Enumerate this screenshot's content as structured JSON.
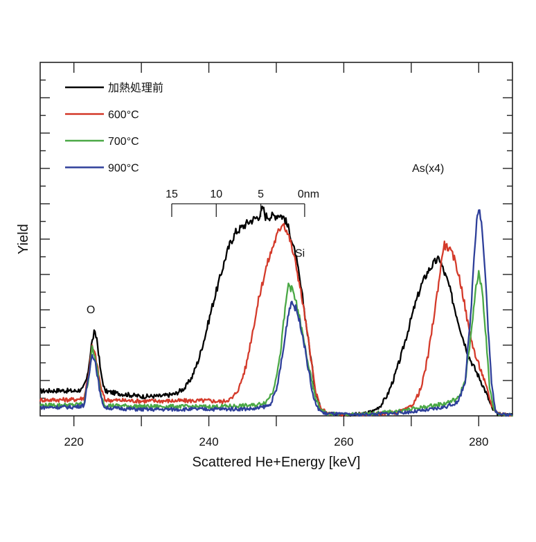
{
  "chart_data": {
    "type": "line",
    "title": "",
    "xlabel": "Scattered He+Energy [keV]",
    "ylabel": "Yield",
    "xlim": [
      215,
      285
    ],
    "ylim": [
      0,
      100
    ],
    "y_units_note": "arbitrary (no y tick labels shown)",
    "x_ticks": [
      220,
      240,
      260,
      280
    ],
    "x_tick_labels": [
      "220",
      "240",
      "260",
      "280"
    ],
    "x_minor_ticks": [
      230,
      250,
      270
    ],
    "y_tick_count": 20,
    "grid": false,
    "legend": {
      "placement": "top-left",
      "entries": [
        "加熱処理前",
        "600°C",
        "700°C",
        "900°C"
      ]
    },
    "annotations": [
      {
        "text": "O",
        "x": 222.5,
        "y": 29
      },
      {
        "text": "Si",
        "x": 253.5,
        "y": 45
      },
      {
        "text": "As(x4)",
        "x": 272.5,
        "y": 69
      }
    ],
    "depth_scale": {
      "labels": [
        "15",
        "10",
        "5",
        "0nm"
      ],
      "depth_nm": [
        15,
        10,
        5,
        0
      ],
      "energy_keV": [
        234.5,
        241.1,
        247.7,
        254.2
      ],
      "y": 60
    },
    "series": [
      {
        "name": "加熱処理前",
        "color": "#000000",
        "points": [
          [
            215,
            7
          ],
          [
            218,
            7.2
          ],
          [
            220,
            7
          ],
          [
            221.3,
            7.5
          ],
          [
            222,
            11
          ],
          [
            222.6,
            20
          ],
          [
            223,
            23.5
          ],
          [
            223.4,
            22
          ],
          [
            224,
            12
          ],
          [
            224.6,
            7
          ],
          [
            226,
            6.5
          ],
          [
            230,
            5.5
          ],
          [
            233,
            5.6
          ],
          [
            235,
            6.2
          ],
          [
            236.5,
            8
          ],
          [
            237.5,
            11
          ],
          [
            238.5,
            16
          ],
          [
            239.5,
            23
          ],
          [
            240.5,
            31
          ],
          [
            241.5,
            38
          ],
          [
            242.5,
            45
          ],
          [
            243.2,
            49
          ],
          [
            244,
            52
          ],
          [
            245,
            53.5
          ],
          [
            246,
            55
          ],
          [
            247,
            56
          ],
          [
            247.7,
            57
          ],
          [
            248,
            59
          ],
          [
            248.4,
            56.5
          ],
          [
            249.5,
            56.5
          ],
          [
            250.5,
            57
          ],
          [
            251.2,
            56
          ],
          [
            252,
            52
          ],
          [
            253,
            44
          ],
          [
            254,
            32
          ],
          [
            255,
            18
          ],
          [
            255.8,
            7
          ],
          [
            256.5,
            2.5
          ],
          [
            257.5,
            0.8
          ],
          [
            260,
            0.3
          ],
          [
            263,
            0.6
          ],
          [
            264.5,
            1.5
          ],
          [
            265.5,
            3
          ],
          [
            266.5,
            6
          ],
          [
            267.5,
            11
          ],
          [
            268.5,
            17
          ],
          [
            269.5,
            24
          ],
          [
            270.5,
            31
          ],
          [
            271.5,
            37
          ],
          [
            272.5,
            41
          ],
          [
            273.5,
            43.5
          ],
          [
            274.2,
            44.5
          ],
          [
            274.8,
            41
          ],
          [
            275.5,
            37.5
          ],
          [
            276.5,
            30
          ],
          [
            277.5,
            23
          ],
          [
            278.5,
            17
          ],
          [
            279.5,
            13
          ],
          [
            280.3,
            10
          ],
          [
            281.2,
            6
          ],
          [
            282,
            2
          ],
          [
            282.8,
            0.5
          ],
          [
            285,
            0.3
          ]
        ]
      },
      {
        "name": "600°C",
        "color": "#d43a2a",
        "points": [
          [
            215,
            4.5
          ],
          [
            220,
            4.6
          ],
          [
            221.5,
            5
          ],
          [
            222.2,
            12
          ],
          [
            222.7,
            19.5
          ],
          [
            223.2,
            17
          ],
          [
            224,
            8
          ],
          [
            224.6,
            4.5
          ],
          [
            230,
            4.2
          ],
          [
            240,
            4.3
          ],
          [
            242,
            4
          ],
          [
            243.5,
            5
          ],
          [
            244.5,
            8
          ],
          [
            245.5,
            14
          ],
          [
            246.5,
            24
          ],
          [
            247.5,
            34
          ],
          [
            248.5,
            42
          ],
          [
            249.5,
            48
          ],
          [
            250.3,
            52
          ],
          [
            251,
            55
          ],
          [
            251.4,
            53
          ],
          [
            252,
            50
          ],
          [
            253,
            42
          ],
          [
            254,
            31
          ],
          [
            255,
            18
          ],
          [
            255.8,
            7
          ],
          [
            256.5,
            2.5
          ],
          [
            257.5,
            0.8
          ],
          [
            260,
            0.3
          ],
          [
            265,
            0.6
          ],
          [
            268,
            1
          ],
          [
            269.5,
            2
          ],
          [
            270.5,
            4
          ],
          [
            271.5,
            8
          ],
          [
            272.5,
            17
          ],
          [
            273.5,
            30
          ],
          [
            274.3,
            41
          ],
          [
            274.8,
            48.5
          ],
          [
            275.5,
            47.5
          ],
          [
            276.5,
            44
          ],
          [
            277.5,
            36
          ],
          [
            278.5,
            25
          ],
          [
            279.5,
            17
          ],
          [
            280.5,
            12
          ],
          [
            281.3,
            7
          ],
          [
            282,
            2.5
          ],
          [
            283,
            0.6
          ],
          [
            285,
            0.3
          ]
        ]
      },
      {
        "name": "700°C",
        "color": "#4aa845",
        "points": [
          [
            215,
            3
          ],
          [
            220,
            3.1
          ],
          [
            221.5,
            3.5
          ],
          [
            222.2,
            11
          ],
          [
            222.7,
            19
          ],
          [
            223.2,
            16
          ],
          [
            224,
            6
          ],
          [
            224.6,
            3
          ],
          [
            230,
            2.7
          ],
          [
            240,
            2.6
          ],
          [
            247,
            3
          ],
          [
            248.5,
            4
          ],
          [
            249.5,
            7
          ],
          [
            250.5,
            16
          ],
          [
            251.3,
            30
          ],
          [
            251.8,
            37.5
          ],
          [
            252.5,
            35
          ],
          [
            253.2,
            30
          ],
          [
            254,
            22
          ],
          [
            255,
            12
          ],
          [
            255.8,
            5
          ],
          [
            256.5,
            2
          ],
          [
            257.5,
            0.6
          ],
          [
            262,
            0.4
          ],
          [
            268,
            1.3
          ],
          [
            272,
            2.5
          ],
          [
            275,
            3.5
          ],
          [
            277,
            5
          ],
          [
            278,
            10
          ],
          [
            279,
            25
          ],
          [
            279.6,
            37
          ],
          [
            280,
            40
          ],
          [
            280.5,
            36
          ],
          [
            281.1,
            22
          ],
          [
            281.6,
            8
          ],
          [
            282.3,
            1.5
          ],
          [
            283,
            0.5
          ],
          [
            285,
            0.3
          ]
        ]
      },
      {
        "name": "900°C",
        "color": "#2e3f9a",
        "points": [
          [
            215,
            2.4
          ],
          [
            220,
            2.5
          ],
          [
            221.5,
            3
          ],
          [
            222.2,
            11
          ],
          [
            222.7,
            18
          ],
          [
            223.2,
            15
          ],
          [
            224,
            5
          ],
          [
            224.6,
            2.3
          ],
          [
            230,
            1.8
          ],
          [
            240,
            1.9
          ],
          [
            247,
            2
          ],
          [
            249,
            3
          ],
          [
            250,
            7
          ],
          [
            251,
            18
          ],
          [
            251.7,
            28
          ],
          [
            252.2,
            32.5
          ],
          [
            253,
            30
          ],
          [
            253.8,
            24
          ],
          [
            254.6,
            15
          ],
          [
            255.4,
            6
          ],
          [
            256,
            2.5
          ],
          [
            257,
            0.7
          ],
          [
            262,
            0.3
          ],
          [
            268,
            0.8
          ],
          [
            272,
            1.5
          ],
          [
            275,
            2.5
          ],
          [
            277,
            4
          ],
          [
            278,
            10
          ],
          [
            278.8,
            28
          ],
          [
            279.3,
            45
          ],
          [
            279.7,
            56
          ],
          [
            280,
            59
          ],
          [
            280.4,
            55
          ],
          [
            280.9,
            42
          ],
          [
            281.4,
            25
          ],
          [
            281.9,
            9
          ],
          [
            282.5,
            1.5
          ],
          [
            283.3,
            0.4
          ],
          [
            285,
            0.3
          ]
        ]
      }
    ]
  }
}
